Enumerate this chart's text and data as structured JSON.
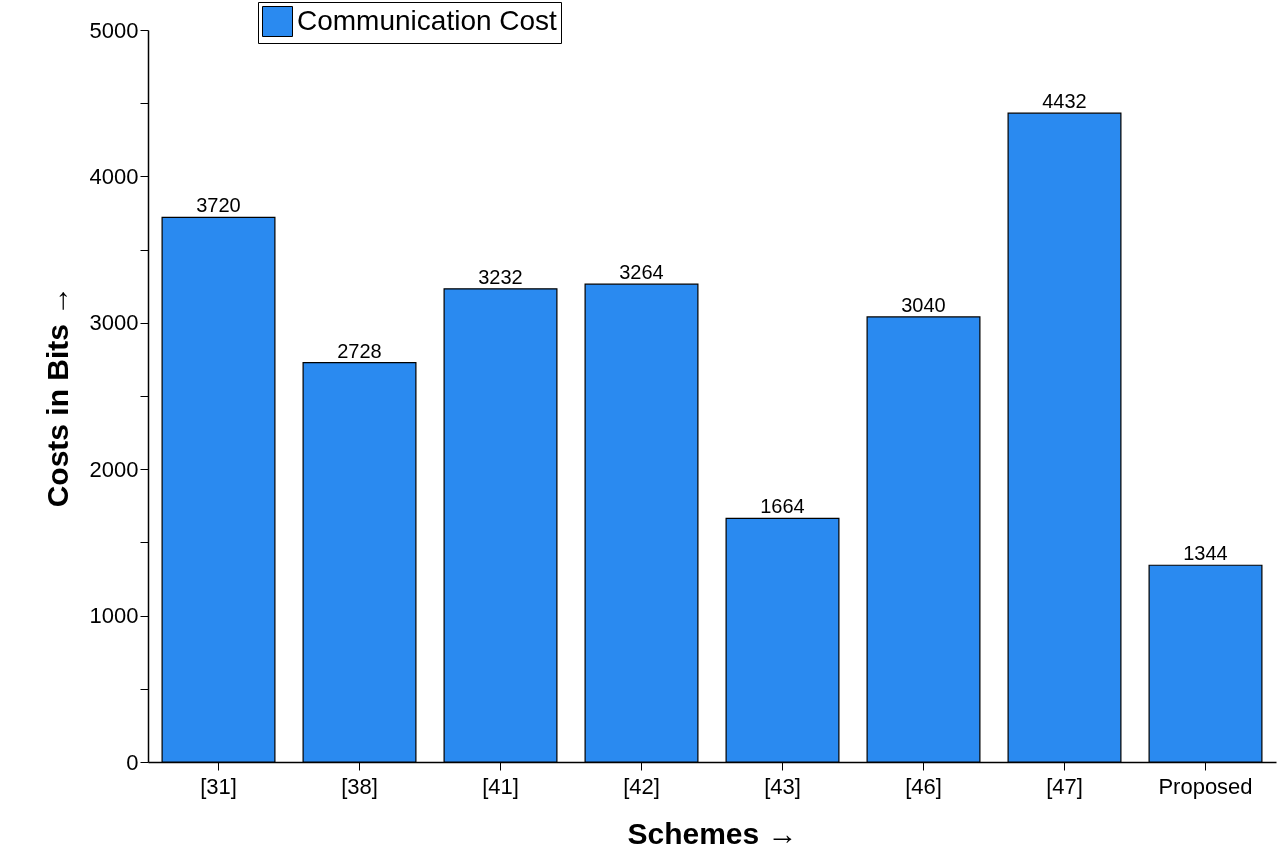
{
  "chart_data": {
    "type": "bar",
    "xlabel": "Schemes →",
    "ylabel": "Costs in Bits →",
    "categories": [
      "[31]",
      "[38]",
      "[41]",
      "[42]",
      "[43]",
      "[46]",
      "[47]",
      "Proposed"
    ],
    "series": [
      {
        "name": "Communication Cost",
        "color": "#2a8af0",
        "values": [
          3720,
          2728,
          3232,
          3264,
          1664,
          3040,
          4432,
          1344
        ]
      }
    ],
    "ylim": [
      0,
      5000
    ],
    "yticks": [
      0,
      {
        "value": 500,
        "label": null
      },
      1000,
      {
        "value": 1500,
        "label": null
      },
      2000,
      {
        "value": 2500,
        "label": null
      },
      3000,
      {
        "value": 3500,
        "label": null
      },
      4000,
      {
        "value": 4500,
        "label": null
      },
      5000
    ],
    "data_labels": true,
    "grid": false,
    "legend": "top left"
  }
}
